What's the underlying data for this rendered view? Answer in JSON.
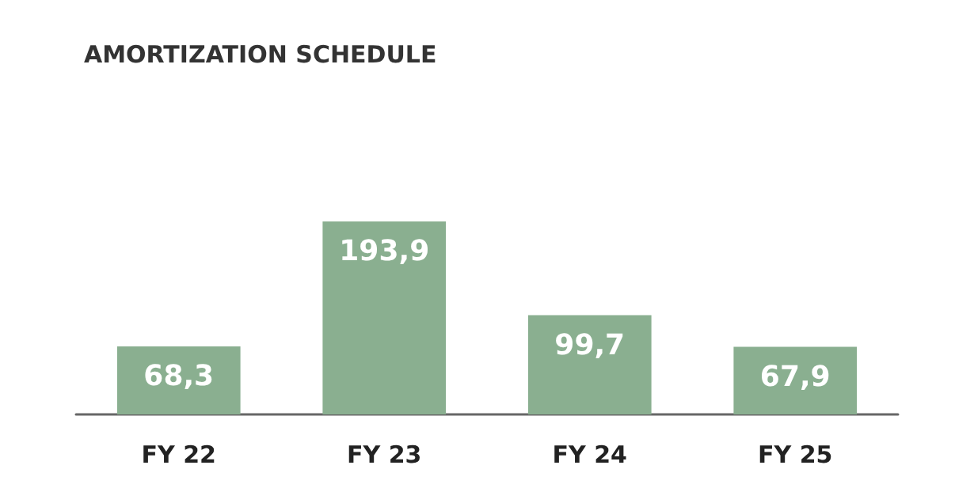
{
  "chart_data": {
    "type": "bar",
    "title": "AMORTIZATION SCHEDULE",
    "categories": [
      "FY 22",
      "FY 23",
      "FY 24",
      "FY 25"
    ],
    "values": [
      68.3,
      193.9,
      99.7,
      67.9
    ],
    "value_labels": [
      "68,3",
      "193,9",
      "99,7",
      "67,9"
    ],
    "color": "#8aaf90"
  }
}
